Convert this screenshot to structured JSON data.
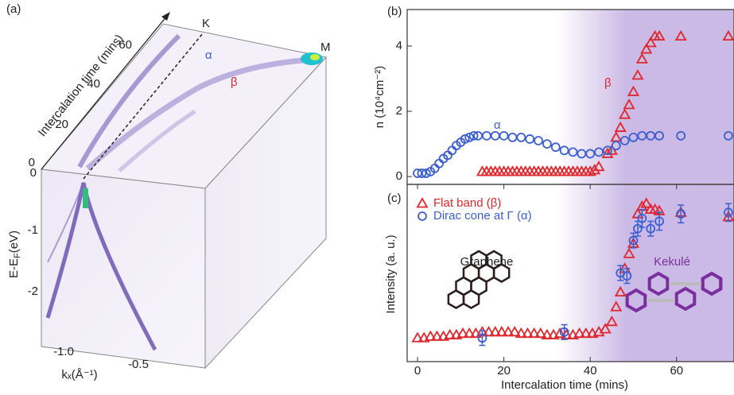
{
  "panel_a": {
    "label": "(a)",
    "time_axis_title": "Intercalation time (mins)",
    "time_ticks": [
      "0",
      "20",
      "40",
      "60"
    ],
    "point_k": "K",
    "point_m": "M",
    "band_alpha": "α",
    "band_beta": "β",
    "energy_ticks": [
      "0",
      "-1",
      "-2"
    ],
    "energy_title": {
      "main": "E-E",
      "sub": "F",
      "unit": "(eV)"
    },
    "k_ticks": [
      "-1.0",
      "-0.5"
    ],
    "k_title": "kₓ(Å⁻¹)"
  },
  "chart_data": [
    {
      "type": "scatter",
      "panel": "(b)",
      "ylabel": "n (10⁴cm⁻²)",
      "xlim": [
        -2.4,
        73.3
      ],
      "ylim": [
        -0.24,
        5.12
      ],
      "yticks": [
        0,
        2,
        4
      ],
      "series": [
        {
          "name": "β",
          "color": "#e0262b",
          "marker": "triangle",
          "x": [
            15,
            16,
            17,
            18,
            19,
            20,
            21,
            22,
            23,
            24,
            25,
            26,
            27,
            28,
            29,
            30,
            31,
            32,
            33,
            34,
            35,
            36,
            37,
            38,
            39,
            40,
            41,
            42,
            44,
            45,
            46,
            47,
            48,
            49,
            50,
            51,
            52,
            53,
            54,
            55,
            56,
            61,
            72
          ],
          "values": [
            0.15,
            0.15,
            0.15,
            0.15,
            0.15,
            0.15,
            0.15,
            0.15,
            0.15,
            0.15,
            0.15,
            0.15,
            0.15,
            0.15,
            0.15,
            0.15,
            0.15,
            0.15,
            0.15,
            0.15,
            0.15,
            0.15,
            0.15,
            0.15,
            0.15,
            0.15,
            0.2,
            0.3,
            0.7,
            0.8,
            1.2,
            1.5,
            1.9,
            2.2,
            2.6,
            3.1,
            3.6,
            3.9,
            4.1,
            4.3,
            4.3,
            4.3,
            4.3
          ]
        },
        {
          "name": "α",
          "color": "#3b5fd0",
          "marker": "circle",
          "x": [
            0,
            1,
            2,
            3,
            4,
            5,
            6,
            7,
            8,
            9,
            10,
            11,
            12,
            13,
            14,
            16,
            18,
            20,
            22,
            24,
            26,
            28,
            30,
            32,
            34,
            36,
            38,
            40,
            42,
            44,
            46,
            48,
            50,
            52,
            54,
            56,
            61,
            72
          ],
          "values": [
            0.1,
            0.1,
            0.1,
            0.15,
            0.25,
            0.4,
            0.55,
            0.65,
            0.8,
            0.95,
            1.05,
            1.15,
            1.2,
            1.25,
            1.25,
            1.25,
            1.25,
            1.25,
            1.2,
            1.2,
            1.15,
            1.1,
            1.0,
            0.9,
            0.8,
            0.75,
            0.7,
            0.7,
            0.75,
            0.8,
            0.95,
            1.1,
            1.2,
            1.25,
            1.25,
            1.25,
            1.25,
            1.25
          ]
        }
      ]
    },
    {
      "type": "scatter",
      "panel": "(c)",
      "xlabel": "Intercalation time (mins)",
      "ylabel": "Intensity (a. u.)",
      "xlim": [
        -2.4,
        73.3
      ],
      "xticks": [
        0,
        20,
        40,
        60
      ],
      "ylim": [
        -0.1,
        1.1
      ],
      "annotations": [
        "Graphene",
        "Kekulé"
      ],
      "series": [
        {
          "name": "Flat band (β)",
          "color": "#e0262b",
          "marker": "triangle",
          "x": [
            0,
            1.5,
            3,
            4.5,
            6,
            7.5,
            9,
            10.5,
            12,
            13.5,
            15,
            16.5,
            18,
            19.5,
            21,
            22.5,
            24,
            25.5,
            27,
            28.5,
            30,
            31.5,
            33,
            34.5,
            36,
            37.5,
            39,
            40.5,
            42,
            43.5,
            45,
            46,
            47,
            48,
            49,
            50,
            51,
            52,
            53,
            54,
            55,
            56,
            61,
            72
          ],
          "values": [
            0.06,
            0.06,
            0.07,
            0.07,
            0.07,
            0.08,
            0.08,
            0.09,
            0.09,
            0.09,
            0.1,
            0.1,
            0.1,
            0.1,
            0.1,
            0.1,
            0.09,
            0.09,
            0.09,
            0.09,
            0.08,
            0.08,
            0.09,
            0.08,
            0.08,
            0.09,
            0.09,
            0.09,
            0.1,
            0.12,
            0.17,
            0.27,
            0.37,
            0.53,
            0.63,
            0.7,
            0.9,
            0.95,
            0.97,
            0.93,
            0.93,
            0.92,
            0.91,
            0.88
          ]
        },
        {
          "name": "Dirac cone at Γ (α)",
          "color": "#3b5fd0",
          "marker": "circle",
          "x": [
            15,
            34,
            47,
            48.5,
            50,
            51,
            52,
            54,
            56,
            61,
            72
          ],
          "values": [
            0.06,
            0.1,
            0.5,
            0.48,
            0.72,
            0.8,
            0.87,
            0.8,
            0.85,
            0.9,
            0.91
          ],
          "errors": [
            0.05,
            0.05,
            0.05,
            0.05,
            0.05,
            0.05,
            0.06,
            0.05,
            0.06,
            0.06,
            0.06
          ]
        }
      ]
    }
  ]
}
